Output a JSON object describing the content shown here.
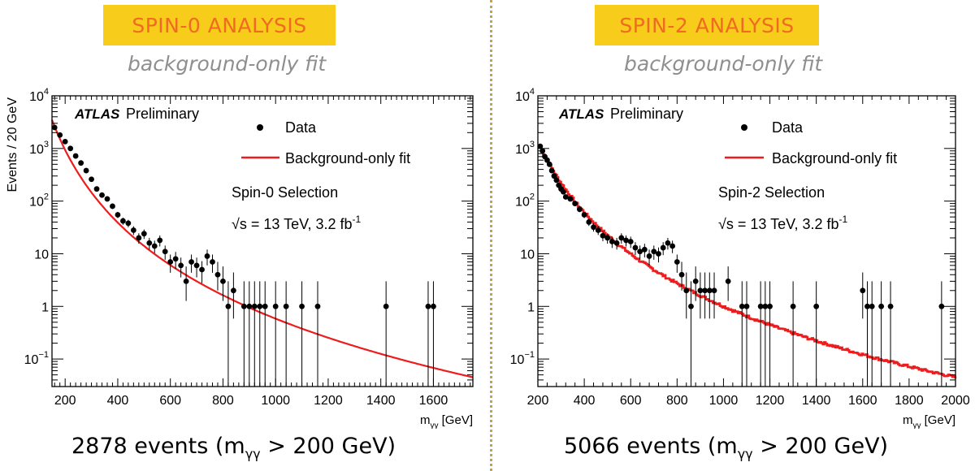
{
  "panels": [
    {
      "banner": "SPIN-0 ANALYSIS",
      "subtitle": "background-only fit",
      "caption": {
        "count": "2878 events",
        "cut_open": "(m",
        "cut_sub": "γγ",
        "cut_close": " > 200 GeV)"
      },
      "legend": {
        "data": "Data",
        "fit": "Background-only fit"
      },
      "selection": "Spin-0 Selection",
      "energy": {
        "sqrt": "√s = 13 TeV, 3.2 fb",
        "sup": "-1"
      },
      "atlas": "ATLAS",
      "preliminary": "Preliminary"
    },
    {
      "banner": "SPIN-2 ANALYSIS",
      "subtitle": "background-only fit",
      "caption": {
        "count": "5066 events",
        "cut_open": "(m",
        "cut_sub": "γγ",
        "cut_close": " > 200 GeV)"
      },
      "legend": {
        "data": "Data",
        "fit": "Background-only fit"
      },
      "selection": "Spin-2 Selection",
      "energy": {
        "sqrt": "√s = 13 TeV, 3.2 fb",
        "sup": "-1"
      },
      "atlas": "ATLAS",
      "preliminary": "Preliminary"
    }
  ],
  "colors": {
    "fit": "#ee1c1c",
    "data": "#000000",
    "banner_bg": "#f7cc1b",
    "banner_text": "#f06a22",
    "subtitle": "#8f8f8f",
    "divider": "#c9a23a"
  },
  "chart_data": [
    {
      "type": "scatter",
      "title": "Spin-0 Selection",
      "xlabel_main": "m",
      "xlabel_sub": "γγ",
      "xlabel_unit": "[GeV]",
      "ylabel": "Events / 20 GeV",
      "xlim": [
        150,
        1750
      ],
      "ylim": [
        0.03,
        10000
      ],
      "yscale": "log",
      "xticks": [
        200,
        400,
        600,
        800,
        1000,
        1200,
        1400,
        1600
      ],
      "yticks": [
        {
          "value": 10000,
          "base": "10",
          "exp": "4"
        },
        {
          "value": 1000,
          "base": "10",
          "exp": "3"
        },
        {
          "value": 100,
          "base": "10",
          "exp": "2"
        },
        {
          "value": 10,
          "base": "10",
          "exp": ""
        },
        {
          "value": 1,
          "base": "1",
          "exp": ""
        },
        {
          "value": 0.1,
          "base": "10",
          "exp": "−1"
        }
      ],
      "fit": {
        "form": "power_law",
        "anchors": [
          [
            150,
            3500
          ],
          [
            1750,
            0.045
          ]
        ]
      },
      "series": [
        {
          "name": "Data",
          "points": [
            [
              160,
              2500
            ],
            [
              180,
              1800
            ],
            [
              200,
              1350
            ],
            [
              220,
              1000
            ],
            [
              240,
              720
            ],
            [
              260,
              530
            ],
            [
              280,
              380
            ],
            [
              300,
              260
            ],
            [
              320,
              170
            ],
            [
              340,
              130
            ],
            [
              360,
              110
            ],
            [
              380,
              80
            ],
            [
              400,
              55
            ],
            [
              420,
              42
            ],
            [
              440,
              38
            ],
            [
              460,
              28
            ],
            [
              480,
              20
            ],
            [
              500,
              24
            ],
            [
              520,
              16
            ],
            [
              540,
              14
            ],
            [
              560,
              18
            ],
            [
              580,
              11
            ],
            [
              600,
              7
            ],
            [
              620,
              8
            ],
            [
              640,
              6
            ],
            [
              660,
              3
            ],
            [
              680,
              7
            ],
            [
              700,
              6
            ],
            [
              720,
              5
            ],
            [
              740,
              9
            ],
            [
              760,
              7
            ],
            [
              780,
              4
            ],
            [
              800,
              3
            ],
            [
              820,
              1
            ],
            [
              840,
              2
            ],
            [
              880,
              1
            ],
            [
              900,
              1
            ],
            [
              920,
              1
            ],
            [
              940,
              1
            ],
            [
              960,
              1
            ],
            [
              1000,
              1
            ],
            [
              1040,
              1
            ],
            [
              1100,
              1
            ],
            [
              1160,
              1
            ],
            [
              1420,
              1
            ],
            [
              1580,
              1
            ],
            [
              1600,
              1
            ]
          ]
        },
        {
          "name": "Background-only fit"
        }
      ]
    },
    {
      "type": "scatter",
      "title": "Spin-2 Selection",
      "xlabel_main": "m",
      "xlabel_sub": "γγ",
      "xlabel_unit": "[GeV]",
      "ylabel": "",
      "xlim": [
        200,
        2000
      ],
      "ylim": [
        0.03,
        10000
      ],
      "yscale": "log",
      "xticks": [
        200,
        400,
        600,
        800,
        1000,
        1200,
        1400,
        1600,
        1800,
        2000
      ],
      "yticks": [
        {
          "value": 10000,
          "base": "10",
          "exp": "4"
        },
        {
          "value": 1000,
          "base": "10",
          "exp": "3"
        },
        {
          "value": 100,
          "base": "10",
          "exp": "2"
        },
        {
          "value": 10,
          "base": "10",
          "exp": ""
        },
        {
          "value": 1,
          "base": "1",
          "exp": ""
        },
        {
          "value": 0.1,
          "base": "10",
          "exp": "−1"
        }
      ],
      "fit": {
        "form": "power_law_binned",
        "anchors": [
          [
            210,
            1100
          ],
          [
            2000,
            0.045
          ]
        ]
      },
      "series": [
        {
          "name": "Data",
          "points": [
            [
              210,
              1100
            ],
            [
              220,
              900
            ],
            [
              230,
              700
            ],
            [
              240,
              600
            ],
            [
              250,
              500
            ],
            [
              260,
              380
            ],
            [
              270,
              300
            ],
            [
              280,
              250
            ],
            [
              290,
              200
            ],
            [
              300,
              170
            ],
            [
              310,
              150
            ],
            [
              320,
              120
            ],
            [
              340,
              110
            ],
            [
              360,
              90
            ],
            [
              380,
              70
            ],
            [
              400,
              55
            ],
            [
              420,
              40
            ],
            [
              440,
              32
            ],
            [
              460,
              28
            ],
            [
              480,
              22
            ],
            [
              500,
              20
            ],
            [
              520,
              17
            ],
            [
              540,
              16
            ],
            [
              560,
              20
            ],
            [
              580,
              18
            ],
            [
              600,
              17
            ],
            [
              620,
              13
            ],
            [
              640,
              11
            ],
            [
              660,
              12
            ],
            [
              680,
              9
            ],
            [
              700,
              11
            ],
            [
              720,
              10
            ],
            [
              740,
              13
            ],
            [
              760,
              16
            ],
            [
              780,
              14
            ],
            [
              800,
              7
            ],
            [
              820,
              4
            ],
            [
              840,
              2
            ],
            [
              860,
              1
            ],
            [
              880,
              3
            ],
            [
              900,
              2
            ],
            [
              920,
              2
            ],
            [
              940,
              2
            ],
            [
              960,
              2
            ],
            [
              1020,
              3
            ],
            [
              1080,
              1
            ],
            [
              1100,
              1
            ],
            [
              1160,
              1
            ],
            [
              1180,
              1
            ],
            [
              1200,
              1
            ],
            [
              1300,
              1
            ],
            [
              1400,
              1
            ],
            [
              1600,
              2
            ],
            [
              1620,
              1
            ],
            [
              1640,
              1
            ],
            [
              1680,
              1
            ],
            [
              1720,
              1
            ],
            [
              1940,
              1
            ]
          ]
        },
        {
          "name": "Background-only fit"
        }
      ]
    }
  ]
}
